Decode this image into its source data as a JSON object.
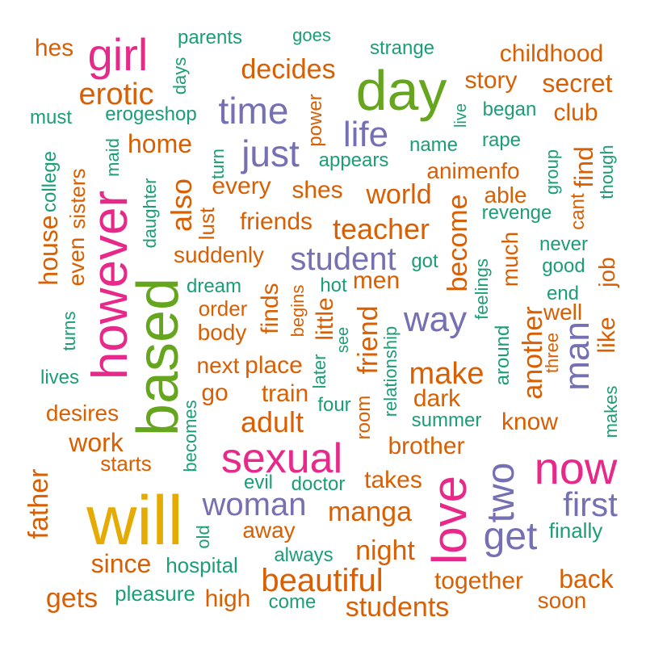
{
  "palette": {
    "orange": "#D95F02",
    "teal": "#1B9E77",
    "purple": "#7570B3",
    "pink": "#E7298A",
    "green": "#66A61E",
    "gold": "#E6AB02"
  },
  "words": [
    "hes",
    "girl",
    "parents",
    "goes",
    "strange",
    "childhood",
    "decides",
    "day",
    "story",
    "secret",
    "erotic",
    "days",
    "must",
    "erogeshop",
    "time",
    "power",
    "life",
    "live",
    "began",
    "club",
    "home",
    "maid",
    "just",
    "name",
    "rape",
    "turn",
    "appears",
    "animenfo",
    "find",
    "though",
    "college",
    "daughter",
    "every",
    "shes",
    "world",
    "able",
    "group",
    "cant",
    "however",
    "also",
    "lust",
    "friends",
    "teacher",
    "become",
    "revenge",
    "house",
    "even",
    "sisters",
    "suddenly",
    "student",
    "got",
    "never",
    "much",
    "good",
    "job",
    "based",
    "dream",
    "hot",
    "men",
    "feelings",
    "end",
    "turns",
    "order",
    "begins",
    "finds",
    "little",
    "way",
    "well",
    "like",
    "body",
    "see",
    "friend",
    "another",
    "three",
    "man",
    "lives",
    "next",
    "place",
    "later",
    "relationship",
    "around",
    "make",
    "go",
    "train",
    "dark",
    "makes",
    "desires",
    "becomes",
    "four",
    "room",
    "adult",
    "summer",
    "know",
    "work",
    "brother",
    "sexual",
    "starts",
    "now",
    "father",
    "takes",
    "two",
    "evil",
    "doctor",
    "woman",
    "manga",
    "first",
    "love",
    "old",
    "away",
    "get",
    "will",
    "finally",
    "since",
    "hospital",
    "always",
    "night",
    "back",
    "together",
    "beautiful",
    "gets",
    "pleasure",
    "high",
    "come",
    "students",
    "soon"
  ]
}
